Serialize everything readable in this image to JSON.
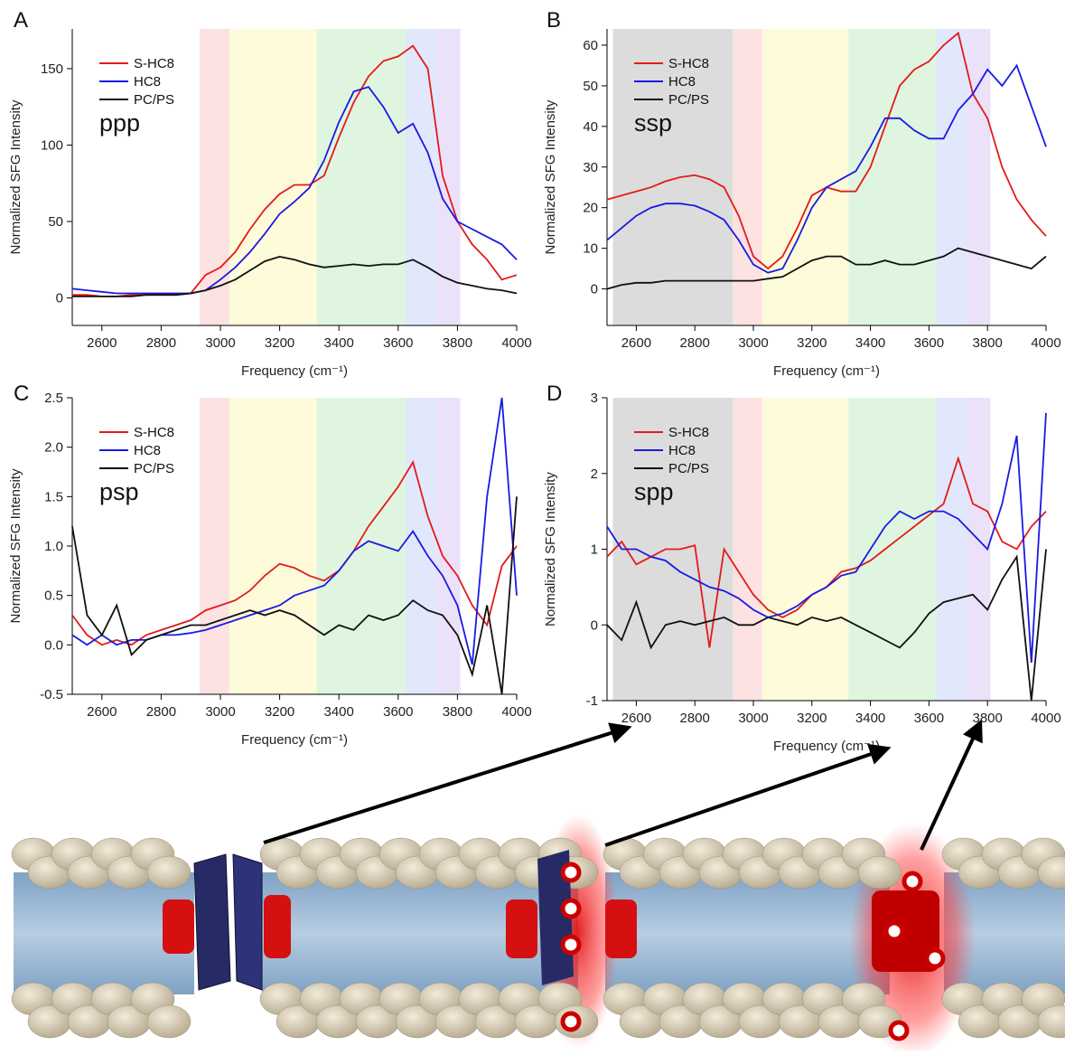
{
  "chart_data": [
    {
      "type": "line",
      "panel": "A",
      "annotation": "ppp",
      "xlabel": "Frequency (cm⁻¹)",
      "ylabel": "Normalized SFG Intensity",
      "x": [
        2500,
        2550,
        2600,
        2650,
        2700,
        2750,
        2800,
        2850,
        2900,
        2950,
        3000,
        3050,
        3100,
        3150,
        3200,
        3250,
        3300,
        3350,
        3400,
        3450,
        3500,
        3550,
        3600,
        3650,
        3700,
        3750,
        3800,
        3850,
        3900,
        3950,
        4000
      ],
      "xlim": [
        2500,
        4000
      ],
      "xticks": [
        2600,
        2800,
        3000,
        3200,
        3400,
        3600,
        3800,
        4000
      ],
      "ylim": [
        -18,
        176
      ],
      "yticks": [
        0,
        50,
        100,
        150
      ],
      "bands": [
        {
          "from": 2930,
          "to": 3030,
          "color": "#fde2e2"
        },
        {
          "from": 3030,
          "to": 3325,
          "color": "#fdfbd9"
        },
        {
          "from": 3325,
          "to": 3625,
          "color": "#dff5df"
        },
        {
          "from": 3625,
          "to": 3730,
          "color": "#e2e8fb"
        },
        {
          "from": 3730,
          "to": 3810,
          "color": "#ebe2fa"
        }
      ],
      "series": [
        {
          "name": "S-HC8",
          "color": "#e41a1a",
          "values": [
            2,
            2,
            1,
            1,
            2,
            2,
            2,
            2,
            3,
            15,
            20,
            30,
            45,
            58,
            68,
            74,
            74,
            80,
            105,
            128,
            145,
            155,
            158,
            165,
            150,
            80,
            50,
            35,
            25,
            12,
            15
          ]
        },
        {
          "name": "HC8",
          "color": "#1a1ae4",
          "values": [
            6,
            5,
            4,
            3,
            3,
            3,
            3,
            3,
            3,
            5,
            12,
            20,
            30,
            42,
            55,
            63,
            72,
            90,
            115,
            135,
            138,
            125,
            108,
            114,
            95,
            65,
            50,
            45,
            40,
            35,
            25
          ]
        },
        {
          "name": "PC/PS",
          "color": "#111111",
          "values": [
            1,
            1,
            1,
            1,
            1,
            2,
            2,
            2,
            3,
            5,
            8,
            12,
            18,
            24,
            27,
            25,
            22,
            20,
            21,
            22,
            21,
            22,
            22,
            25,
            20,
            14,
            10,
            8,
            6,
            5,
            3
          ]
        }
      ]
    },
    {
      "type": "line",
      "panel": "B",
      "annotation": "ssp",
      "xlabel": "Frequency (cm⁻¹)",
      "ylabel": "Normalized SFG Intensity",
      "x": [
        2500,
        2550,
        2600,
        2650,
        2700,
        2750,
        2800,
        2850,
        2900,
        2950,
        3000,
        3050,
        3100,
        3150,
        3200,
        3250,
        3300,
        3350,
        3400,
        3450,
        3500,
        3550,
        3600,
        3650,
        3700,
        3750,
        3800,
        3850,
        3900,
        3950,
        4000
      ],
      "xlim": [
        2500,
        4000
      ],
      "xticks": [
        2600,
        2800,
        3000,
        3200,
        3400,
        3600,
        3800,
        4000
      ],
      "ylim": [
        -9,
        64
      ],
      "yticks": [
        0,
        10,
        20,
        30,
        40,
        50,
        60
      ],
      "bands": [
        {
          "from": 2520,
          "to": 2930,
          "color": "#dcdcdc"
        },
        {
          "from": 2930,
          "to": 3030,
          "color": "#fde2e2"
        },
        {
          "from": 3030,
          "to": 3325,
          "color": "#fdfbd9"
        },
        {
          "from": 3325,
          "to": 3625,
          "color": "#dff5df"
        },
        {
          "from": 3625,
          "to": 3730,
          "color": "#e2e8fb"
        },
        {
          "from": 3730,
          "to": 3810,
          "color": "#ebe2fa"
        }
      ],
      "series": [
        {
          "name": "S-HC8",
          "color": "#e41a1a",
          "values": [
            22,
            23,
            24,
            25,
            26.5,
            27.5,
            28,
            27,
            25,
            18,
            8,
            5,
            8,
            15,
            23,
            25,
            24,
            24,
            30,
            40,
            50,
            54,
            56,
            60,
            63,
            48,
            42,
            30,
            22,
            17,
            13
          ]
        },
        {
          "name": "HC8",
          "color": "#1a1ae4",
          "values": [
            12,
            15,
            18,
            20,
            21,
            21,
            20.5,
            19,
            17,
            12,
            6,
            4,
            5,
            12,
            20,
            25,
            27,
            29,
            35,
            42,
            42,
            39,
            37,
            37,
            44,
            48,
            54,
            50,
            55,
            45,
            35
          ]
        },
        {
          "name": "PC/PS",
          "color": "#111111",
          "values": [
            0,
            1,
            1.5,
            1.5,
            2,
            2,
            2,
            2,
            2,
            2,
            2,
            2.5,
            3,
            5,
            7,
            8,
            8,
            6,
            6,
            7,
            6,
            6,
            7,
            8,
            10,
            9,
            8,
            7,
            6,
            5,
            8
          ]
        }
      ]
    },
    {
      "type": "line",
      "panel": "C",
      "annotation": "psp",
      "xlabel": "Frequency (cm⁻¹)",
      "ylabel": "Normalized SFG Intensity",
      "x": [
        2500,
        2550,
        2600,
        2650,
        2700,
        2750,
        2800,
        2850,
        2900,
        2950,
        3000,
        3050,
        3100,
        3150,
        3200,
        3250,
        3300,
        3350,
        3400,
        3450,
        3500,
        3550,
        3600,
        3650,
        3700,
        3750,
        3800,
        3850,
        3900,
        3950,
        4000
      ],
      "xlim": [
        2500,
        4000
      ],
      "xticks": [
        2600,
        2800,
        3000,
        3200,
        3400,
        3600,
        3800,
        4000
      ],
      "ylim": [
        -0.5,
        2.5
      ],
      "yticks": [
        -0.5,
        {
          "value": 0,
          "label": "0.0"
        },
        0.5,
        {
          "value": 1,
          "label": "1.0"
        },
        1.5,
        {
          "value": 2,
          "label": "2.0"
        },
        2.5
      ],
      "bands": [
        {
          "from": 2930,
          "to": 3030,
          "color": "#fde2e2"
        },
        {
          "from": 3030,
          "to": 3325,
          "color": "#fdfbd9"
        },
        {
          "from": 3325,
          "to": 3625,
          "color": "#dff5df"
        },
        {
          "from": 3625,
          "to": 3730,
          "color": "#e2e8fb"
        },
        {
          "from": 3730,
          "to": 3810,
          "color": "#ebe2fa"
        }
      ],
      "series": [
        {
          "name": "S-HC8",
          "color": "#e41a1a",
          "values": [
            0.3,
            0.1,
            0,
            0.05,
            0,
            0.1,
            0.15,
            0.2,
            0.25,
            0.35,
            0.4,
            0.45,
            0.55,
            0.7,
            0.82,
            0.78,
            0.7,
            0.65,
            0.75,
            0.95,
            1.2,
            1.4,
            1.6,
            1.85,
            1.3,
            0.9,
            0.7,
            0.4,
            0.2,
            0.8,
            1
          ]
        },
        {
          "name": "HC8",
          "color": "#1a1ae4",
          "values": [
            0.1,
            0,
            0.1,
            0,
            0.05,
            0.05,
            0.1,
            0.1,
            0.12,
            0.15,
            0.2,
            0.25,
            0.3,
            0.35,
            0.4,
            0.5,
            0.55,
            0.6,
            0.75,
            0.95,
            1.05,
            1,
            0.95,
            1.15,
            0.9,
            0.7,
            0.4,
            -0.2,
            1.5,
            2.5,
            0.5
          ]
        },
        {
          "name": "PC/PS",
          "color": "#111111",
          "values": [
            1.2,
            0.3,
            0.1,
            0.4,
            -0.1,
            0.05,
            0.1,
            0.15,
            0.2,
            0.2,
            0.25,
            0.3,
            0.35,
            0.3,
            0.35,
            0.3,
            0.2,
            0.1,
            0.2,
            0.15,
            0.3,
            0.25,
            0.3,
            0.45,
            0.35,
            0.3,
            0.1,
            -0.3,
            0.4,
            -0.5,
            1.5
          ]
        }
      ]
    },
    {
      "type": "line",
      "panel": "D",
      "annotation": "spp",
      "xlabel": "Frequency (cm⁻¹)",
      "ylabel": "Normalized SFG Intensity",
      "x": [
        2500,
        2550,
        2600,
        2650,
        2700,
        2750,
        2800,
        2850,
        2900,
        2950,
        3000,
        3050,
        3100,
        3150,
        3200,
        3250,
        3300,
        3350,
        3400,
        3450,
        3500,
        3550,
        3600,
        3650,
        3700,
        3750,
        3800,
        3850,
        3900,
        3950,
        4000
      ],
      "xlim": [
        2500,
        4000
      ],
      "xticks": [
        2600,
        2800,
        3000,
        3200,
        3400,
        3600,
        3800,
        4000
      ],
      "ylim": [
        -1,
        3
      ],
      "yticks": [
        -1,
        0,
        1,
        2,
        3
      ],
      "bands": [
        {
          "from": 2520,
          "to": 2930,
          "color": "#dcdcdc"
        },
        {
          "from": 2930,
          "to": 3030,
          "color": "#fde2e2"
        },
        {
          "from": 3030,
          "to": 3325,
          "color": "#fdfbd9"
        },
        {
          "from": 3325,
          "to": 3625,
          "color": "#dff5df"
        },
        {
          "from": 3625,
          "to": 3730,
          "color": "#e2e8fb"
        },
        {
          "from": 3730,
          "to": 3810,
          "color": "#ebe2fa"
        }
      ],
      "series": [
        {
          "name": "S-HC8",
          "color": "#e41a1a",
          "values": [
            0.9,
            1.1,
            0.8,
            0.9,
            1,
            1,
            1.05,
            -0.3,
            1,
            0.7,
            0.4,
            0.2,
            0.1,
            0.2,
            0.4,
            0.5,
            0.7,
            0.75,
            0.85,
            1,
            1.15,
            1.3,
            1.45,
            1.6,
            2.2,
            1.6,
            1.5,
            1.1,
            1,
            1.3,
            1.5
          ]
        },
        {
          "name": "HC8",
          "color": "#1a1ae4",
          "values": [
            1.3,
            1,
            1,
            0.9,
            0.85,
            0.7,
            0.6,
            0.5,
            0.45,
            0.35,
            0.2,
            0.1,
            0.15,
            0.25,
            0.4,
            0.5,
            0.65,
            0.7,
            1,
            1.3,
            1.5,
            1.4,
            1.5,
            1.5,
            1.4,
            1.2,
            1,
            1.6,
            2.5,
            -0.5,
            2.8
          ]
        },
        {
          "name": "PC/PS",
          "color": "#111111",
          "values": [
            0,
            -0.2,
            0.3,
            -0.3,
            0,
            0.05,
            0,
            0.05,
            0.1,
            0,
            0,
            0.1,
            0.05,
            0,
            0.1,
            0.05,
            0.1,
            0,
            -0.1,
            -0.2,
            -0.3,
            -0.1,
            0.15,
            0.3,
            0.35,
            0.4,
            0.2,
            0.6,
            0.9,
            -1,
            1
          ]
        }
      ]
    }
  ]
}
